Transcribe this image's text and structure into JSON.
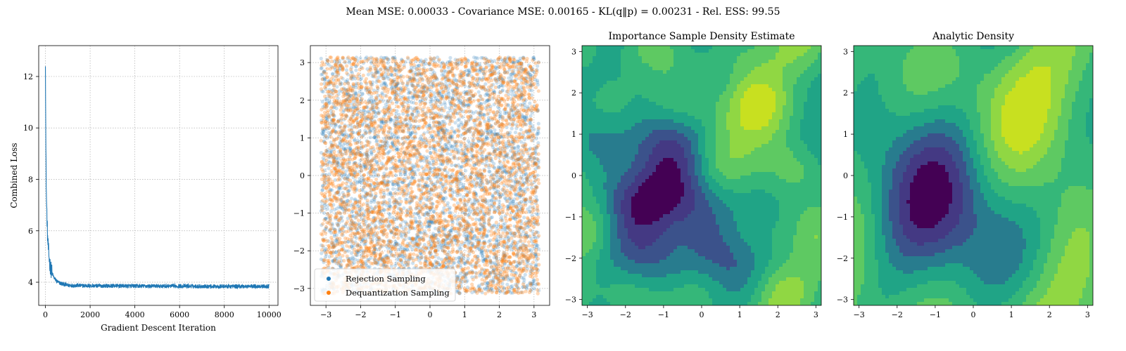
{
  "figure": {
    "suptitle": "Mean MSE: 0.00033 - Covariance MSE: 0.00165 - KL(q‖p) = 0.00231 - Rel. ESS: 99.55"
  },
  "colors": {
    "blue": "#1f77b4",
    "orange": "#ff7f0e",
    "grid": "#b0b0b0",
    "viridis_levels": [
      "#440154",
      "#471365",
      "#482475",
      "#443983",
      "#3b528b",
      "#30678d",
      "#287c8e",
      "#21918c",
      "#20a486",
      "#35b779",
      "#5ec962",
      "#90d743",
      "#c8e020",
      "#fde725"
    ]
  },
  "chart_data": [
    {
      "type": "line",
      "title": "",
      "xlabel": "Gradient Descent Iteration",
      "ylabel": "Combined Loss",
      "xlim": [
        -300,
        10400
      ],
      "ylim": [
        3.1,
        13.2
      ],
      "xticks": [
        0,
        2000,
        4000,
        6000,
        8000,
        10000
      ],
      "yticks": [
        4,
        6,
        8,
        10,
        12
      ],
      "grid": true,
      "series": [
        {
          "color": "#1f77b4",
          "x": [
            0,
            10,
            20,
            30,
            40,
            50,
            60,
            80,
            100,
            130,
            160,
            200,
            250,
            300,
            400,
            500,
            600,
            800,
            1000,
            1500,
            2000,
            3000,
            4000,
            5000,
            6000,
            7000,
            8000,
            9000,
            10000
          ],
          "y": [
            12.7,
            10.9,
            9.2,
            8.4,
            7.6,
            7.1,
            6.8,
            6.2,
            5.7,
            5.3,
            5.0,
            4.7,
            4.5,
            4.35,
            4.15,
            4.05,
            3.98,
            3.92,
            3.88,
            3.87,
            3.86,
            3.86,
            3.85,
            3.85,
            3.85,
            3.84,
            3.84,
            3.84,
            3.84
          ],
          "noise_amplitude": 0.08
        }
      ]
    },
    {
      "type": "scatter",
      "title": "",
      "xlim": [
        -3.45,
        3.45
      ],
      "ylim": [
        -3.45,
        3.45
      ],
      "xticks": [
        -3,
        -2,
        -1,
        0,
        1,
        2,
        3
      ],
      "yticks": [
        -3,
        -2,
        -1,
        0,
        1,
        2,
        3
      ],
      "grid": true,
      "legend_position": "lower-left",
      "series": [
        {
          "name": "Rejection Sampling",
          "color": "#1f77b4",
          "domain": [
            -3.14159,
            3.14159
          ],
          "point_count": 4000
        },
        {
          "name": "Dequantization Sampling",
          "color": "#ff7f0e",
          "domain": [
            -3.14159,
            3.14159
          ],
          "point_count": 4000
        }
      ]
    },
    {
      "type": "heatmap",
      "title": "Importance Sample Density Estimate",
      "xlim": [
        -3.14159,
        3.14159
      ],
      "ylim": [
        -3.14159,
        3.14159
      ],
      "xticks": [
        -3,
        -2,
        -1,
        0,
        1,
        2,
        3
      ],
      "yticks": [
        -3,
        -2,
        -1,
        0,
        1,
        2,
        3
      ],
      "colormap": "viridis",
      "peaks": [
        {
          "x": 0.3,
          "y": 2.7
        },
        {
          "x": -2.6,
          "y": 1.6
        },
        {
          "x": 2.0,
          "y": -0.1
        },
        {
          "x": 3.1,
          "y": 1.2
        }
      ],
      "minimum": {
        "x": -1.4,
        "y": -1.5
      }
    },
    {
      "type": "heatmap",
      "title": "Analytic Density",
      "xlim": [
        -3.14159,
        3.14159
      ],
      "ylim": [
        -3.14159,
        3.14159
      ],
      "xticks": [
        -3,
        -2,
        -1,
        0,
        1,
        2,
        3
      ],
      "yticks": [
        -3,
        -2,
        -1,
        0,
        1,
        2,
        3
      ],
      "colormap": "viridis",
      "peaks": [
        {
          "x": 0.3,
          "y": 2.7
        },
        {
          "x": -2.6,
          "y": 1.5
        },
        {
          "x": 2.0,
          "y": 0.1
        }
      ],
      "minimum": {
        "x": -1.4,
        "y": -1.4
      }
    }
  ]
}
